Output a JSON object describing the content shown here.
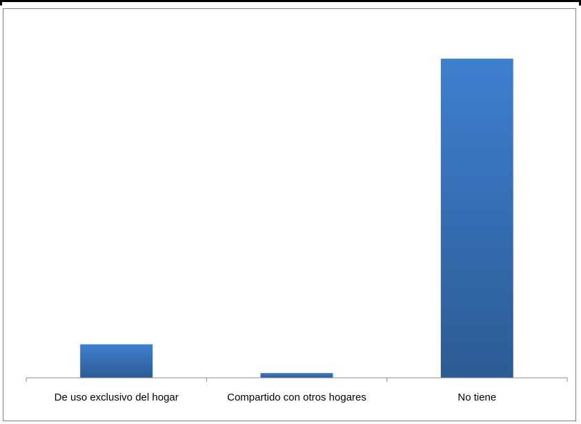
{
  "chart_data": {
    "type": "bar",
    "categories": [
      "De uso exclusivo del hogar",
      "Compartido con otros hogares",
      "No tiene"
    ],
    "values": [
      10.5,
      1.5,
      100
    ],
    "ylim": [
      0,
      105
    ],
    "grid": false,
    "legend": "none",
    "bar_color_top": "#3e80d0",
    "bar_color_bottom": "#2d5b95",
    "axis_color": "#8c8c8c"
  }
}
